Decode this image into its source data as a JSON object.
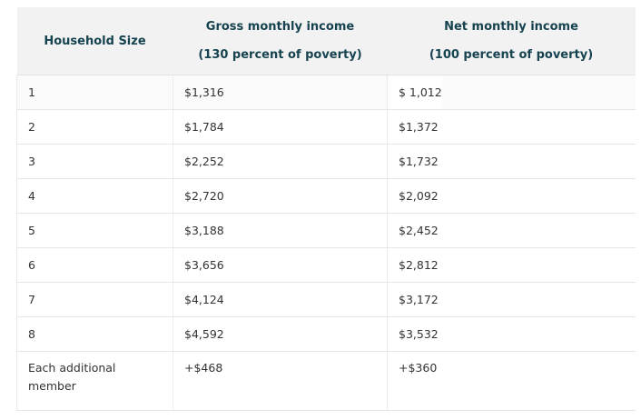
{
  "table": {
    "headers": {
      "household_size": "Household Size",
      "gross_title": "Gross monthly income",
      "gross_subtitle": "(130 percent of poverty)",
      "net_title": "Net monthly income",
      "net_subtitle": "(100 percent of poverty)"
    },
    "rows": [
      {
        "size": "1",
        "gross": "$1,316",
        "net": "$ 1,012"
      },
      {
        "size": "2",
        "gross": "$1,784",
        "net": "$1,372"
      },
      {
        "size": "3",
        "gross": "$2,252",
        "net": "$1,732"
      },
      {
        "size": "4",
        "gross": "$2,720",
        "net": "$2,092"
      },
      {
        "size": "5",
        "gross": "$3,188",
        "net": "$2,452"
      },
      {
        "size": "6",
        "gross": "$3,656",
        "net": "$2,812"
      },
      {
        "size": "7",
        "gross": "$4,124",
        "net": "$3,172"
      },
      {
        "size": "8",
        "gross": "$4,592",
        "net": "$3,532"
      },
      {
        "size": "Each additional member",
        "gross": "+$468",
        "net": "+$360"
      }
    ]
  },
  "colors": {
    "header_text": "#16434f",
    "header_bg": "#f2f2f2",
    "body_text": "#333333",
    "border": "#e6e6e6"
  }
}
